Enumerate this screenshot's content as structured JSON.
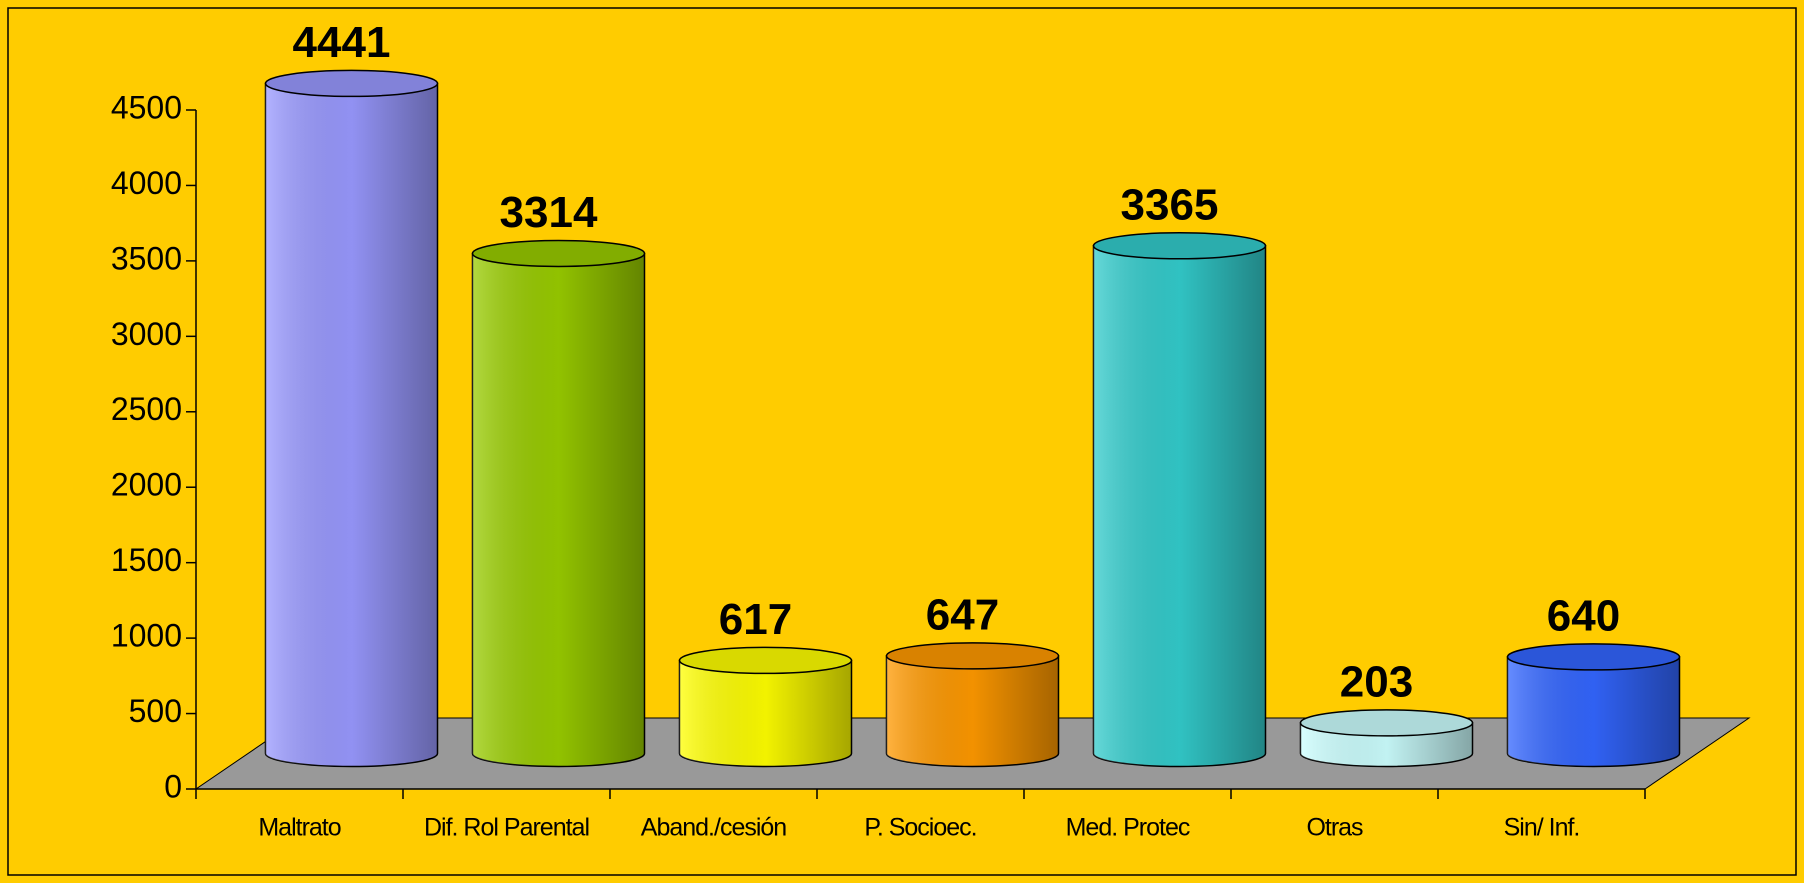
{
  "chart_data": {
    "type": "bar",
    "style": "3d-cylinder",
    "categories": [
      "Maltrato",
      "Dif. Rol Parental",
      "Aband./cesión",
      "P. Socioec.",
      "Med. Protec",
      "Otras",
      "Sin/ Inf."
    ],
    "values": [
      4441,
      3314,
      617,
      647,
      3365,
      203,
      640
    ],
    "colors": [
      "#9999ff",
      "#99cc00",
      "#ffff00",
      "#ff9900",
      "#33cccc",
      "#ccffff",
      "#3366ff"
    ],
    "ylim": [
      0,
      4500
    ],
    "yticks": [
      0,
      500,
      1000,
      1500,
      2000,
      2500,
      3000,
      3500,
      4000,
      4500
    ],
    "grid": false,
    "floor_color": "#999999"
  }
}
